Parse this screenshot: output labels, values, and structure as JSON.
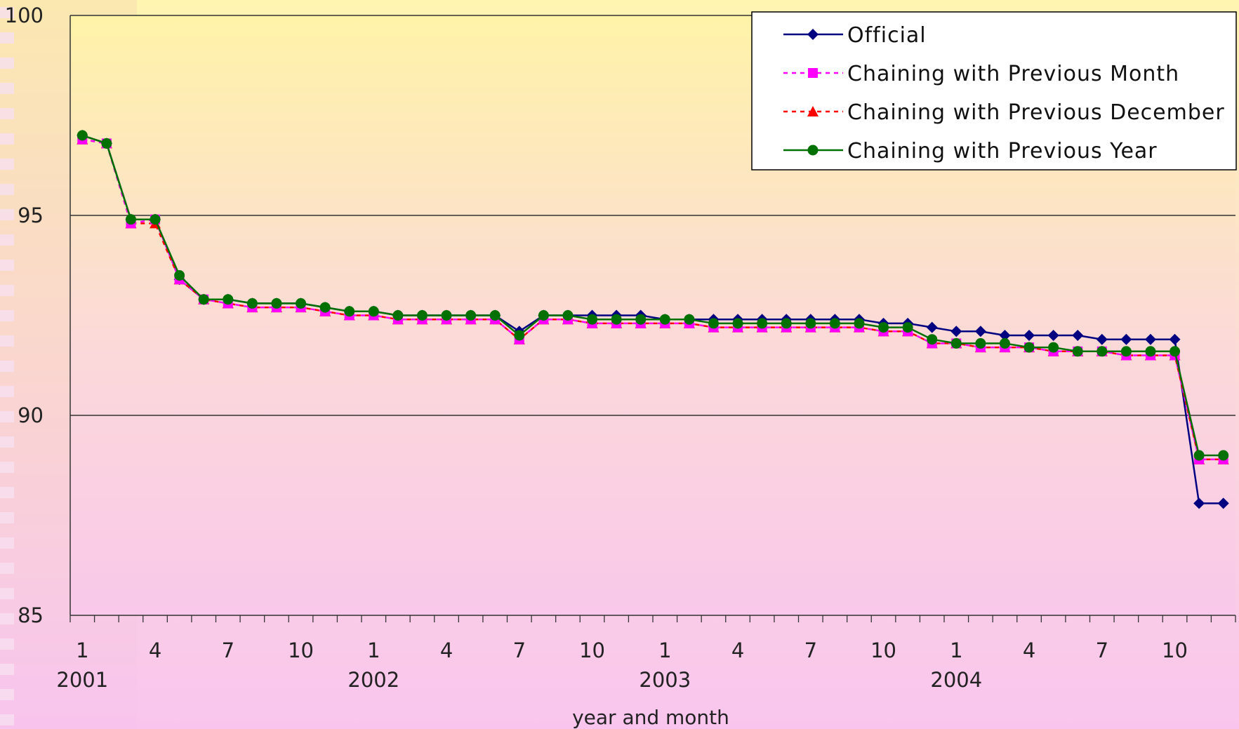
{
  "chart_data": {
    "type": "line",
    "xlabel": "year and month",
    "ylim": [
      85,
      100
    ],
    "yticks": [
      "85",
      "90",
      "95",
      "100"
    ],
    "grid": true,
    "legend_position": "top-right",
    "x_tick_labels": [
      {
        "month": "1",
        "year": "2001"
      },
      {
        "month": "4",
        "year": ""
      },
      {
        "month": "7",
        "year": ""
      },
      {
        "month": "10",
        "year": ""
      },
      {
        "month": "1",
        "year": "2002"
      },
      {
        "month": "4",
        "year": ""
      },
      {
        "month": "7",
        "year": ""
      },
      {
        "month": "10",
        "year": ""
      },
      {
        "month": "1",
        "year": "2003"
      },
      {
        "month": "4",
        "year": ""
      },
      {
        "month": "7",
        "year": ""
      },
      {
        "month": "10",
        "year": ""
      },
      {
        "month": "1",
        "year": "2004"
      },
      {
        "month": "4",
        "year": ""
      },
      {
        "month": "7",
        "year": ""
      },
      {
        "month": "10",
        "year": ""
      }
    ],
    "x": [
      "2001-01",
      "2001-02",
      "2001-03",
      "2001-04",
      "2001-05",
      "2001-06",
      "2001-07",
      "2001-08",
      "2001-09",
      "2001-10",
      "2001-11",
      "2001-12",
      "2002-01",
      "2002-02",
      "2002-03",
      "2002-04",
      "2002-05",
      "2002-06",
      "2002-07",
      "2002-08",
      "2002-09",
      "2002-10",
      "2002-11",
      "2002-12",
      "2003-01",
      "2003-02",
      "2003-03",
      "2003-04",
      "2003-05",
      "2003-06",
      "2003-07",
      "2003-08",
      "2003-09",
      "2003-10",
      "2003-11",
      "2003-12",
      "2004-01",
      "2004-02",
      "2004-03",
      "2004-04",
      "2004-05",
      "2004-06",
      "2004-07",
      "2004-08",
      "2004-09",
      "2004-10",
      "2004-11",
      "2004-12"
    ],
    "series": [
      {
        "name": "Official",
        "color": "#000080",
        "style": "solid",
        "marker": "diamond",
        "values": [
          97.0,
          96.8,
          94.9,
          94.9,
          93.4,
          92.9,
          92.9,
          92.8,
          92.8,
          92.8,
          92.7,
          92.6,
          92.6,
          92.5,
          92.5,
          92.5,
          92.5,
          92.5,
          92.1,
          92.5,
          92.5,
          92.5,
          92.5,
          92.5,
          92.4,
          92.4,
          92.4,
          92.4,
          92.4,
          92.4,
          92.4,
          92.4,
          92.4,
          92.3,
          92.3,
          92.2,
          92.1,
          92.1,
          92.0,
          92.0,
          92.0,
          92.0,
          91.9,
          91.9,
          91.9,
          91.9,
          87.8,
          87.8
        ]
      },
      {
        "name": "Chaining with Previous Month",
        "color": "#ff00ff",
        "style": "dashed",
        "marker": "square",
        "values": [
          96.9,
          96.8,
          94.8,
          94.9,
          93.4,
          92.9,
          92.8,
          92.7,
          92.7,
          92.7,
          92.6,
          92.5,
          92.5,
          92.4,
          92.4,
          92.4,
          92.4,
          92.4,
          91.9,
          92.4,
          92.4,
          92.3,
          92.3,
          92.3,
          92.3,
          92.3,
          92.2,
          92.2,
          92.2,
          92.2,
          92.2,
          92.2,
          92.2,
          92.1,
          92.1,
          91.8,
          91.8,
          91.7,
          91.7,
          91.7,
          91.6,
          91.6,
          91.6,
          91.5,
          91.5,
          91.5,
          88.9,
          88.9
        ]
      },
      {
        "name": "Chaining with Previous December",
        "color": "#ff0000",
        "style": "dashed",
        "marker": "triangle",
        "values": [
          96.9,
          96.8,
          94.8,
          94.8,
          93.4,
          92.9,
          92.8,
          92.7,
          92.7,
          92.7,
          92.6,
          92.5,
          92.5,
          92.4,
          92.4,
          92.4,
          92.4,
          92.4,
          91.9,
          92.4,
          92.4,
          92.3,
          92.3,
          92.3,
          92.3,
          92.3,
          92.2,
          92.2,
          92.2,
          92.2,
          92.2,
          92.2,
          92.2,
          92.1,
          92.1,
          91.8,
          91.8,
          91.7,
          91.7,
          91.7,
          91.6,
          91.6,
          91.6,
          91.5,
          91.5,
          91.5,
          88.9,
          88.9
        ]
      },
      {
        "name": "Chaining with Previous Year",
        "color": "#007000",
        "style": "solid",
        "marker": "circle",
        "values": [
          97.0,
          96.8,
          94.9,
          94.9,
          93.5,
          92.9,
          92.9,
          92.8,
          92.8,
          92.8,
          92.7,
          92.6,
          92.6,
          92.5,
          92.5,
          92.5,
          92.5,
          92.5,
          92.0,
          92.5,
          92.5,
          92.4,
          92.4,
          92.4,
          92.4,
          92.4,
          92.3,
          92.3,
          92.3,
          92.3,
          92.3,
          92.3,
          92.3,
          92.2,
          92.2,
          91.9,
          91.8,
          91.8,
          91.8,
          91.7,
          91.7,
          91.6,
          91.6,
          91.6,
          91.6,
          91.6,
          89.0,
          89.0
        ]
      }
    ]
  }
}
